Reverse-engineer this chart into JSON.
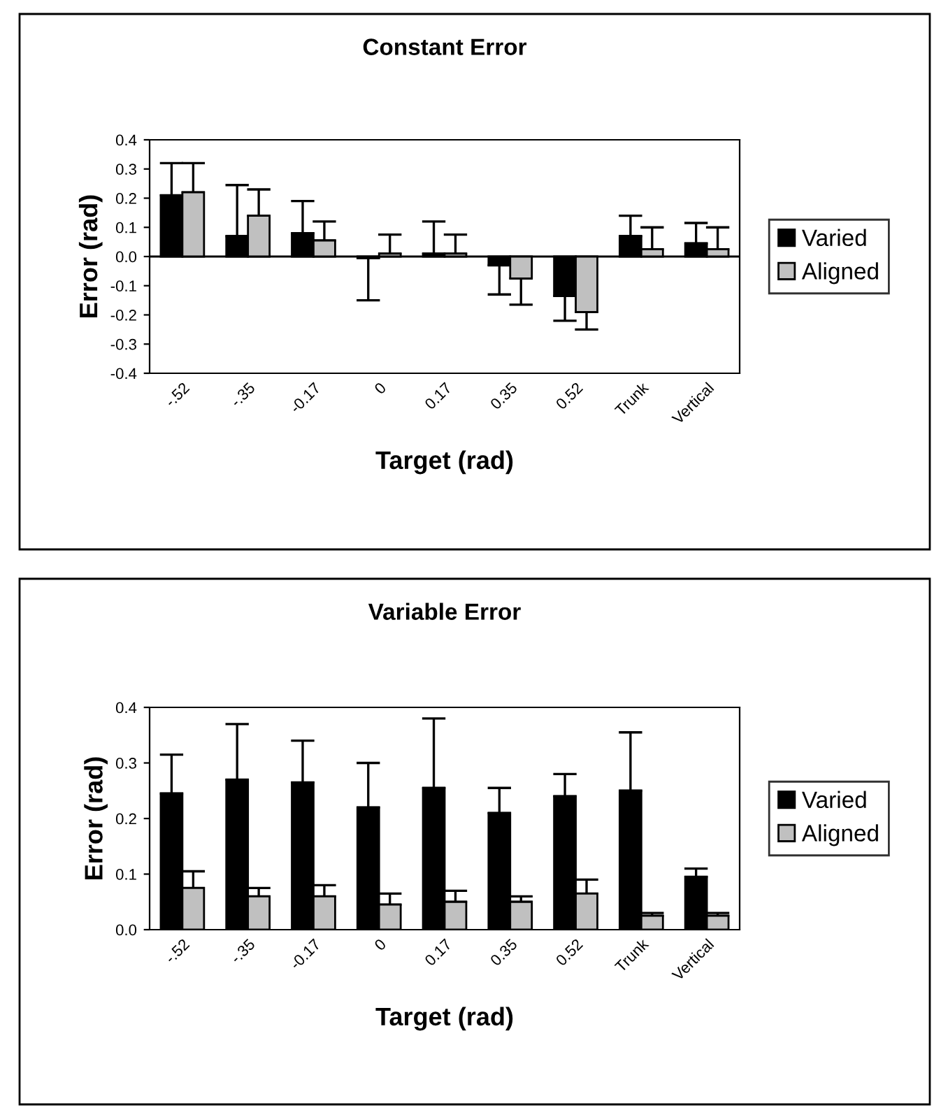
{
  "chart_data": [
    {
      "type": "bar",
      "title": "Constant Error",
      "xlabel": "Target (rad)",
      "ylabel": "Error (rad)",
      "categories": [
        "-.52",
        "-.35",
        "-0.17",
        "0",
        "0.17",
        "0.35",
        "0.52",
        "Trunk",
        "Vertical"
      ],
      "series": [
        {
          "name": "Varied",
          "color": "#000000",
          "values": [
            0.21,
            0.07,
            0.08,
            -0.005,
            0.01,
            -0.03,
            -0.135,
            0.07,
            0.045
          ],
          "errors": [
            [
              0.21,
              0.32
            ],
            [
              0.07,
              0.245
            ],
            [
              0.08,
              0.19
            ],
            [
              -0.15,
              -0.005
            ],
            [
              0.01,
              0.12
            ],
            [
              -0.13,
              -0.03
            ],
            [
              -0.22,
              -0.135
            ],
            [
              0.07,
              0.14
            ],
            [
              0.045,
              0.115
            ]
          ]
        },
        {
          "name": "Aligned",
          "color": "#c0c0c0",
          "values": [
            0.22,
            0.14,
            0.055,
            0.01,
            0.01,
            -0.075,
            -0.19,
            0.025,
            0.025
          ],
          "errors": [
            [
              0.22,
              0.32
            ],
            [
              0.14,
              0.23
            ],
            [
              0.055,
              0.12
            ],
            [
              0.01,
              0.075
            ],
            [
              0.01,
              0.075
            ],
            [
              -0.165,
              -0.075
            ],
            [
              -0.25,
              -0.19
            ],
            [
              0.025,
              0.1
            ],
            [
              0.025,
              0.1
            ]
          ]
        }
      ],
      "ylim": [
        -0.4,
        0.4
      ],
      "yticks": [
        -0.4,
        -0.3,
        -0.2,
        -0.1,
        {
          "value": 0,
          "label": "0.0"
        },
        0.1,
        0.2,
        0.3,
        0.4
      ],
      "grid": false,
      "legend": "right",
      "ref_lines": [
        {
          "axis": "y",
          "value": 0,
          "color": "#000000"
        }
      ]
    },
    {
      "type": "bar",
      "title": "Variable Error",
      "xlabel": "Target (rad)",
      "ylabel": "Error (rad)",
      "categories": [
        "-.52",
        "-.35",
        "-0.17",
        "0",
        "0.17",
        "0.35",
        "0.52",
        "Trunk",
        "Vertical"
      ],
      "series": [
        {
          "name": "Varied",
          "color": "#000000",
          "values": [
            0.245,
            0.27,
            0.265,
            0.22,
            0.255,
            0.21,
            0.24,
            0.25,
            0.095
          ],
          "errors": [
            [
              0.245,
              0.315
            ],
            [
              0.27,
              0.37
            ],
            [
              0.265,
              0.34
            ],
            [
              0.22,
              0.3
            ],
            [
              0.255,
              0.38
            ],
            [
              0.21,
              0.255
            ],
            [
              0.24,
              0.28
            ],
            [
              0.25,
              0.355
            ],
            [
              0.095,
              0.11
            ]
          ]
        },
        {
          "name": "Aligned",
          "color": "#c0c0c0",
          "values": [
            0.075,
            0.06,
            0.06,
            0.045,
            0.05,
            0.05,
            0.065,
            0.025,
            0.025
          ],
          "errors": [
            [
              0.075,
              0.105
            ],
            [
              0.06,
              0.075
            ],
            [
              0.06,
              0.08
            ],
            [
              0.045,
              0.065
            ],
            [
              0.05,
              0.07
            ],
            [
              0.05,
              0.06
            ],
            [
              0.065,
              0.09
            ],
            [
              0.025,
              0.03
            ],
            [
              0.025,
              0.03
            ]
          ]
        }
      ],
      "ylim": [
        0,
        0.4
      ],
      "yticks": [
        {
          "value": 0,
          "label": "0.0"
        },
        0.1,
        0.2,
        0.3,
        0.4
      ],
      "grid": false,
      "legend": "right"
    }
  ]
}
